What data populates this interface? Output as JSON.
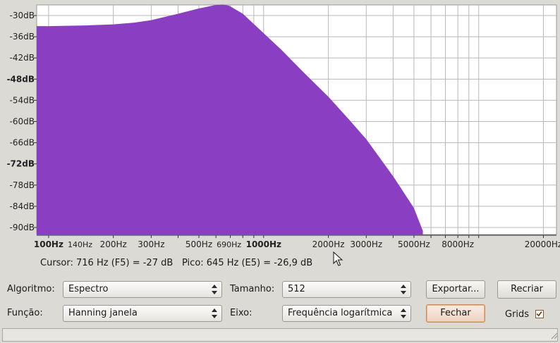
{
  "plot": {
    "y_ticks": [
      {
        "label": "-30dB",
        "value": -30,
        "bold": false
      },
      {
        "label": "-36dB",
        "value": -36,
        "bold": false
      },
      {
        "label": "-42dB",
        "value": -42,
        "bold": false
      },
      {
        "label": "-48dB",
        "value": -48,
        "bold": true
      },
      {
        "label": "-54dB",
        "value": -54,
        "bold": false
      },
      {
        "label": "-60dB",
        "value": -60,
        "bold": false
      },
      {
        "label": "-66dB",
        "value": -66,
        "bold": false
      },
      {
        "label": "-72dB",
        "value": -72,
        "bold": true
      },
      {
        "label": "-78dB",
        "value": -78,
        "bold": false
      },
      {
        "label": "-84dB",
        "value": -84,
        "bold": false
      },
      {
        "label": "-90dB",
        "value": -90,
        "bold": false
      }
    ],
    "x_ticks": [
      {
        "label": "100Hz",
        "value": 100,
        "bold": true,
        "small": false
      },
      {
        "label": "140Hz",
        "value": 140,
        "bold": false,
        "small": true
      },
      {
        "label": "200Hz",
        "value": 200,
        "bold": false,
        "small": false
      },
      {
        "label": "300Hz",
        "value": 300,
        "bold": false,
        "small": false
      },
      {
        "label": "500Hz",
        "value": 500,
        "bold": false,
        "small": false
      },
      {
        "label": "690Hz",
        "value": 690,
        "bold": false,
        "small": true
      },
      {
        "label": "1000Hz",
        "value": 1000,
        "bold": true,
        "small": false
      },
      {
        "label": "2000Hz",
        "value": 2000,
        "bold": false,
        "small": false
      },
      {
        "label": "3000Hz",
        "value": 3000,
        "bold": false,
        "small": false
      },
      {
        "label": "5000Hz",
        "value": 5000,
        "bold": false,
        "small": false
      },
      {
        "label": "8000Hz",
        "value": 8000,
        "bold": false,
        "small": false
      },
      {
        "label": "20000Hz",
        "value": 20000,
        "bold": false,
        "small": false
      }
    ],
    "fill_color": "#8a3fc2",
    "grid_color": "#b8b8b8"
  },
  "chart_data": {
    "type": "area",
    "x_scale": "log",
    "xlim": [
      88,
      23000
    ],
    "ylim": [
      -92,
      -27
    ],
    "grid": true,
    "series": [
      {
        "x": [
          88,
          100,
          150,
          200,
          250,
          300,
          400,
          500,
          600,
          645,
          690,
          800,
          1000,
          1200,
          1500,
          2000,
          2500,
          3000,
          4000,
          5000,
          5500
        ],
        "values": [
          -33,
          -33,
          -32.8,
          -32.5,
          -32,
          -31.3,
          -29.5,
          -28,
          -27,
          -26.9,
          -27.2,
          -29.5,
          -35,
          -39.5,
          -45.5,
          -53,
          -59.5,
          -65,
          -75.5,
          -84.5,
          -91
        ]
      }
    ]
  },
  "readout": {
    "cursor": "Cursor: 716 Hz (F5) = -27 dB",
    "peak": "Pico: 645 Hz (E5) = -26,9 dB"
  },
  "controls": {
    "algorithm_label": "Algoritmo:",
    "algorithm_value": "Espectro",
    "function_label": "Função:",
    "function_value": "Hanning janela",
    "size_label": "Tamanho:",
    "size_value": "512",
    "axis_label": "Eixo:",
    "axis_value": "Frequência logarítmica",
    "export_label": "Exportar...",
    "recreate_label": "Recriar",
    "close_label": "Fechar",
    "grids_label": "Grids",
    "grids_checked": true
  }
}
